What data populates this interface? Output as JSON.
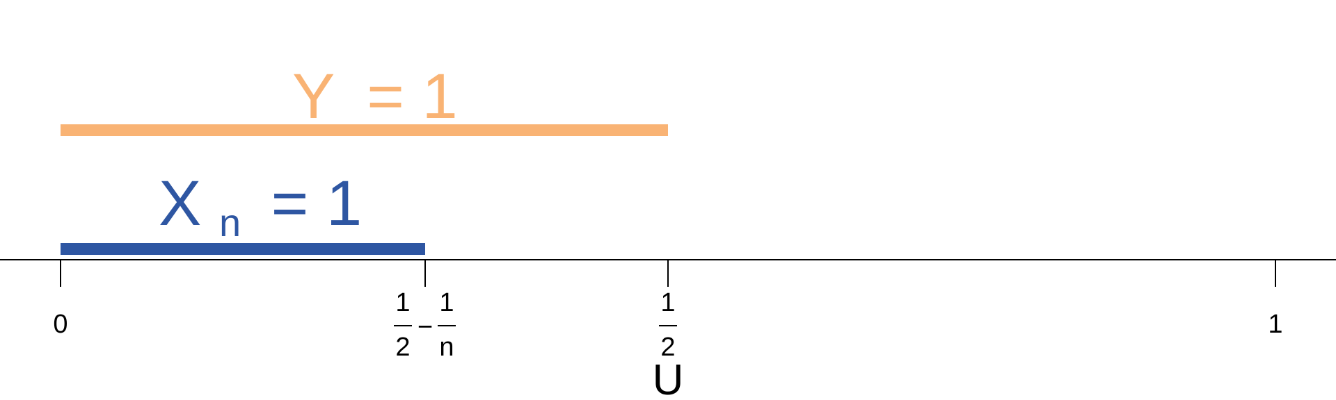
{
  "colors": {
    "y_event": "#F9B374",
    "x_event": "#2E56A2",
    "axis": "#000000"
  },
  "y_event": {
    "label_var": "Y",
    "label_eq": "= 1"
  },
  "x_event": {
    "label_var": "X",
    "label_sub": "n",
    "label_eq": "= 1"
  },
  "axis": {
    "name": "U",
    "ticks": {
      "zero": "0",
      "half_minus": {
        "frac1_num": "1",
        "frac1_den": "2",
        "minus": "−",
        "frac2_num": "1",
        "frac2_den": "n"
      },
      "half": {
        "num": "1",
        "den": "2"
      },
      "one": "1"
    }
  }
}
